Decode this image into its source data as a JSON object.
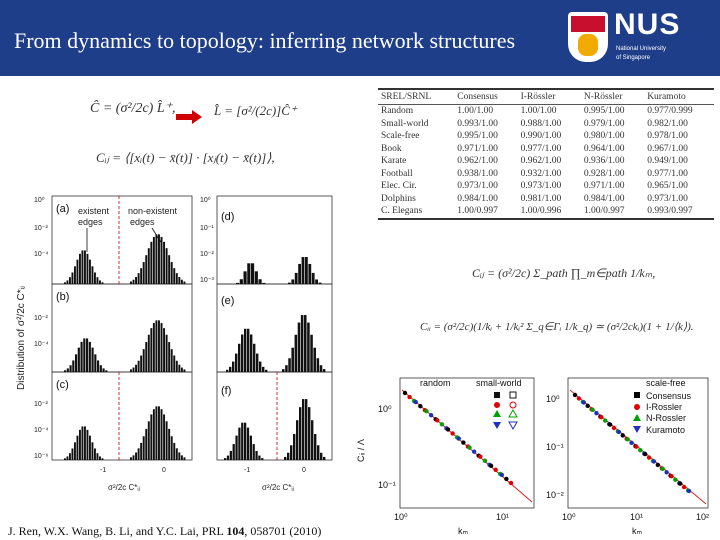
{
  "slide": {
    "title": "From dynamics to topology: inferring network structures",
    "logo_text": "NUS",
    "logo_sub1": "National University",
    "logo_sub2": "of Singapore",
    "colors": {
      "header": "#1f3e8a",
      "accent": "#c8102e"
    }
  },
  "equations": {
    "eq1_left": "Ĉ = (σ²/2c) L̂⁺,",
    "eq1_right": "L̂ = [σ²/(2c)]Ĉ⁺",
    "eq2": "Cᵢⱼ = ⟨[xᵢ(t) − x̄(t)] · [xⱼ(t) − x̄(t)]⟩,",
    "eq3": "Cᵢⱼ = (σ²/2c) Σ_path ∏_m∈path 1/kₘ,",
    "eq4": "Cᵢᵢ = (σ²/2c)(1/kᵢ + 1/kᵢ² Σ_q∈Γᵢ 1/k_q) ≃ (σ²/2ckᵢ)(1 + 1/⟨k⟩)."
  },
  "table": {
    "headers": [
      "SREL/SRNL",
      "Consensus",
      "I-Rössler",
      "N-Rössler",
      "Kuramoto"
    ],
    "rows": [
      [
        "Random",
        "1.00/1.00",
        "1.00/1.00",
        "0.995/1.00",
        "0.977/0.999"
      ],
      [
        "Small-world",
        "0.993/1.00",
        "0.988/1.00",
        "0.979/1.00",
        "0.982/1.00"
      ],
      [
        "Scale-free",
        "0.995/1.00",
        "0.990/1.00",
        "0.980/1.00",
        "0.978/1.00"
      ],
      [
        "Book",
        "0.971/1.00",
        "0.977/1.00",
        "0.964/1.00",
        "0.967/1.00"
      ],
      [
        "Karate",
        "0.962/1.00",
        "0.962/1.00",
        "0.936/1.00",
        "0.949/1.00"
      ],
      [
        "Football",
        "0.938/1.00",
        "0.932/1.00",
        "0.928/1.00",
        "0.977/1.00"
      ],
      [
        "Elec. Cir.",
        "0.973/1.00",
        "0.973/1.00",
        "0.971/1.00",
        "0.965/1.00"
      ],
      [
        "Dolphins",
        "0.984/1.00",
        "0.981/1.00",
        "0.984/1.00",
        "0.973/1.00"
      ],
      [
        "C. Elegans",
        "1.00/0.997",
        "1.00/0.996",
        "1.00/0.997",
        "0.993/0.997"
      ]
    ]
  },
  "left_figure": {
    "ylabel": "Distribution of σ²/2c C*ᵢⱼ",
    "xlabel": "σ²/2c C*ᵢⱼ",
    "panels": [
      "(a)",
      "(b)",
      "(c)",
      "(d)",
      "(e)",
      "(f)"
    ],
    "annotation_existent": [
      "existent",
      "edges"
    ],
    "annotation_nonexistent": [
      "non-existent",
      "edges"
    ],
    "yticks": [
      "10⁰",
      "10⁻²",
      "10⁻⁴",
      "10⁻⁶"
    ],
    "yticks_right": [
      "10⁰",
      "10⁻¹",
      "10⁻²",
      "10⁻³"
    ],
    "xticks": [
      "-1",
      "0"
    ]
  },
  "right_figure": {
    "ylabel": "Cᵢᵢ / Λ",
    "xlabel": "kₘ",
    "left_top_labels": [
      "random",
      "small-world"
    ],
    "right_top_label": "scale-free",
    "legend": [
      "Consensus",
      "I-Rossler",
      "N-Rossler",
      "Kuramoto"
    ],
    "legend_colors": [
      "#000000",
      "#e00000",
      "#00a000",
      "#2030c0"
    ],
    "yticks_left": [
      "10⁰",
      "10⁻¹"
    ],
    "yticks_right": [
      "10⁰",
      "10⁻¹",
      "10⁻²"
    ],
    "xticks_left": [
      "10⁰",
      "10¹"
    ],
    "xticks_right": [
      "10⁰",
      "10¹",
      "10²"
    ]
  },
  "citation": {
    "authors": "J. Ren, W.X. Wang, B. Li, and Y.C. Lai, PRL ",
    "volume": "104",
    "rest": ", 058701 (2010)"
  }
}
